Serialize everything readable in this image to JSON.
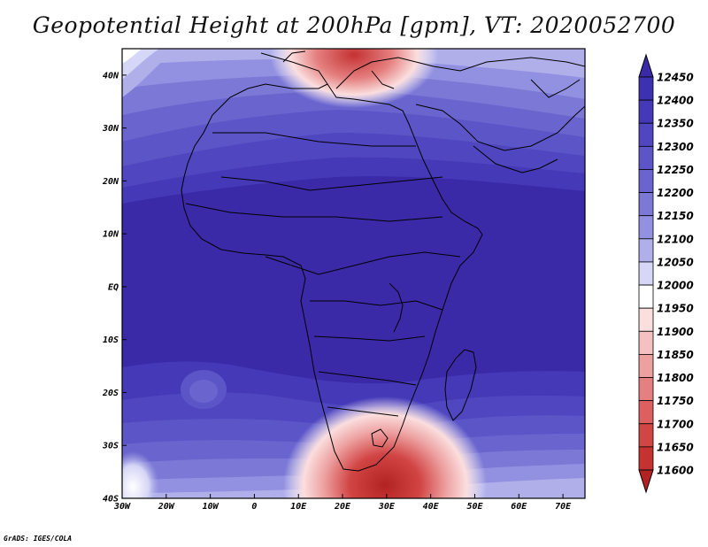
{
  "title": "Geopotential Height at 200hPa [gpm], VT: 2020052700",
  "credit": "GrADS: IGES/COLA",
  "map": {
    "lon_range": [
      -30,
      75
    ],
    "lat_range": [
      -40,
      45
    ],
    "x_ticks": [
      "30W",
      "20W",
      "10W",
      "0",
      "10E",
      "20E",
      "30E",
      "40E",
      "50E",
      "60E",
      "70E"
    ],
    "x_tick_values": [
      -30,
      -20,
      -10,
      0,
      10,
      20,
      30,
      40,
      50,
      60,
      70
    ],
    "y_ticks": [
      "40N",
      "30N",
      "20N",
      "10N",
      "EQ",
      "10S",
      "20S",
      "30S",
      "40S"
    ],
    "y_tick_values": [
      40,
      30,
      20,
      10,
      0,
      -10,
      -20,
      -30,
      -40
    ]
  },
  "colorbar": {
    "levels": [
      "12450",
      "12400",
      "12350",
      "12300",
      "12250",
      "12200",
      "12150",
      "12100",
      "12050",
      "12000",
      "11950",
      "11900",
      "11850",
      "11800",
      "11750",
      "11700",
      "11650",
      "11600"
    ],
    "colors": [
      "#3a2aa8",
      "#3c32b0",
      "#4539b8",
      "#5047c0",
      "#5c55c8",
      "#6a65ce",
      "#7b78d6",
      "#9290e0",
      "#b0afea",
      "#d6d6f6",
      "#ffffff",
      "#fbdede",
      "#f4c0c0",
      "#eda0a0",
      "#e58080",
      "#dc6060",
      "#d24545",
      "#c43232",
      "#b22222"
    ]
  }
}
